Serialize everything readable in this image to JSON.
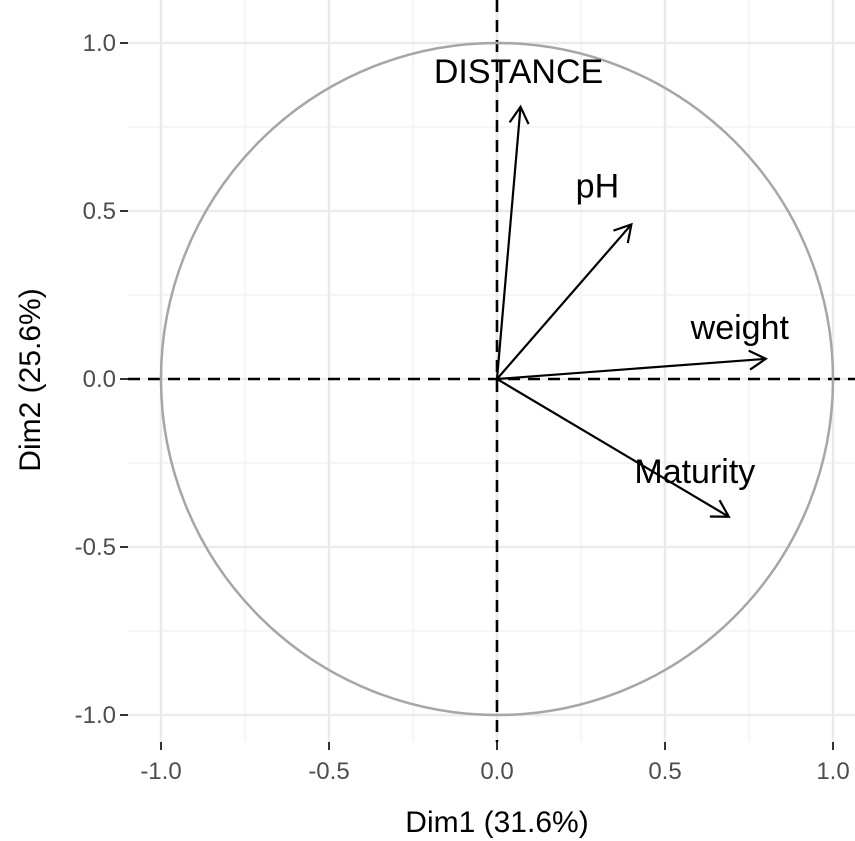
{
  "chart_data": {
    "type": "scatter",
    "subtype": "pca-variable-correlation-circle",
    "title": "",
    "xlabel": "Dim1 (31.6%)",
    "ylabel": "Dim2 (25.6%)",
    "xlim": [
      -1.0,
      1.0
    ],
    "ylim": [
      -1.0,
      1.0
    ],
    "x_ticks": [
      -1.0,
      -0.5,
      0.0,
      0.5,
      1.0
    ],
    "y_ticks": [
      -1.0,
      -0.5,
      0.0,
      0.5,
      1.0
    ],
    "x_tick_labels": [
      "-1.0",
      "-0.5",
      "0.0",
      "0.5",
      "1.0"
    ],
    "y_tick_labels": [
      "-1.0",
      "-0.5",
      "0.0",
      "0.5",
      "1.0"
    ],
    "grid": true,
    "unit_circle": true,
    "reference_lines": "dashed at x=0 and y=0",
    "variables": [
      {
        "name": "DISTANCE",
        "x": 0.07,
        "y": 0.81
      },
      {
        "name": "pH",
        "x": 0.4,
        "y": 0.46
      },
      {
        "name": "weight",
        "x": 0.8,
        "y": 0.06
      },
      {
        "name": "Maturity",
        "x": 0.69,
        "y": -0.41
      }
    ],
    "colors": {
      "arrow": "#000000",
      "circle": "#a6a6a6",
      "grid_major": "#ebebeb",
      "grid_minor": "#f5f5f5",
      "tick_text": "#4d4d4d"
    }
  }
}
